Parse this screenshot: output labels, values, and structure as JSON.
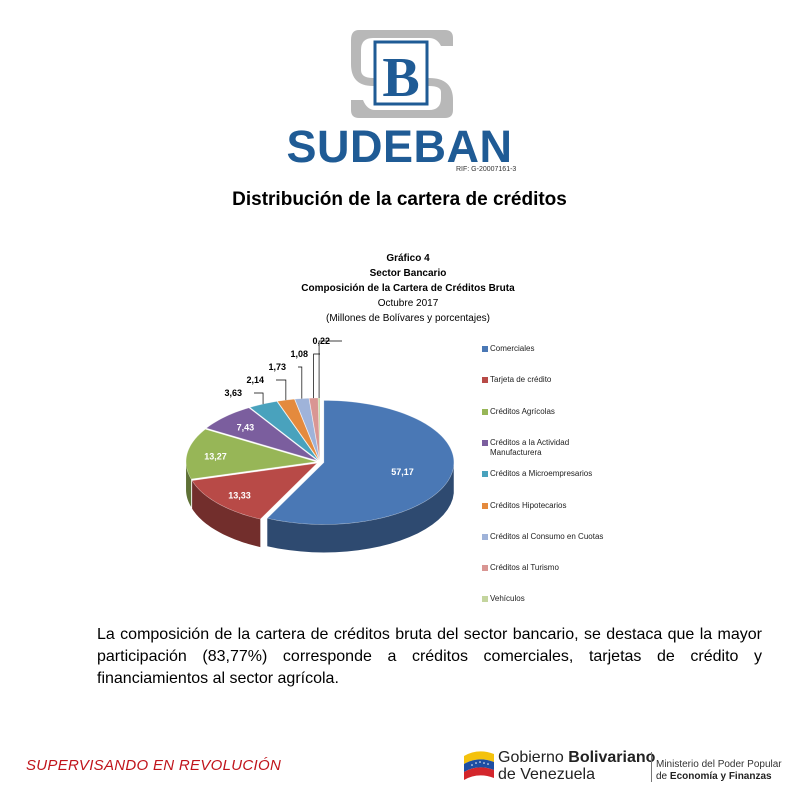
{
  "header": {
    "brand_name": "SUDEBAN",
    "rif": "RIF: G-20007161-3",
    "logo_letter": "B"
  },
  "page_heading": "Distribución de la cartera de créditos",
  "chart_caption": {
    "line1": "Gráfico 4",
    "line2": "Sector Bancario",
    "line3": "Composición de la Cartera de Créditos Bruta",
    "line4": "Octubre 2017",
    "line5": "(Millones de Bolívares y porcentajes)"
  },
  "chart_data": {
    "type": "pie",
    "title": "Composición de la Cartera de Créditos Bruta",
    "categories": [
      "Comerciales",
      "Tarjeta de crédito",
      "Créditos Agrícolas",
      "Créditos a la Actividad Manufacturera",
      "Créditos a Microempresarios",
      "Créditos Hipotecarios",
      "Créditos al Consumo en Cuotas",
      "Créditos al Turismo",
      "Vehículos"
    ],
    "values": [
      57.17,
      13.33,
      13.27,
      7.43,
      3.63,
      2.14,
      1.73,
      1.08,
      0.22
    ],
    "value_labels": [
      "57,17",
      "13,33",
      "13,27",
      "7,43",
      "3,63",
      "2,14",
      "1,73",
      "1,08",
      "0,22"
    ],
    "colors": [
      "#4a78b5",
      "#b84a47",
      "#97b657",
      "#7b5e9e",
      "#49a2bd",
      "#e48a3d",
      "#9fb3d9",
      "#d99693",
      "#c4d59e"
    ],
    "legend_lines": [
      "Comerciales",
      "Tarjeta de crédito",
      "Créditos Agrícolas",
      "Créditos a la Actividad\nManufacturera",
      "Créditos a Microempresarios",
      "Créditos Hipotecarios",
      "Créditos al Consumo en Cuotas",
      "Créditos al Turismo",
      "Vehículos"
    ],
    "style": "3d-exploded",
    "legend_position": "right"
  },
  "body_text": "La composición de la cartera de créditos bruta del sector bancario, se destaca que la mayor participación (83,77%) corresponde a créditos comerciales, tarjetas de crédito y financiamientos al sector agrícola.",
  "footer": {
    "slogan": "SUPERVISANDO EN REVOLUCIÓN",
    "gov_line1_a": "Gobierno ",
    "gov_line1_b": "Bolivariano",
    "gov_line2": "de Venezuela",
    "ministry_line1": "Ministerio del Poder Popular",
    "ministry_line2_a": "de ",
    "ministry_line2_b": "Economía y Finanzas"
  }
}
